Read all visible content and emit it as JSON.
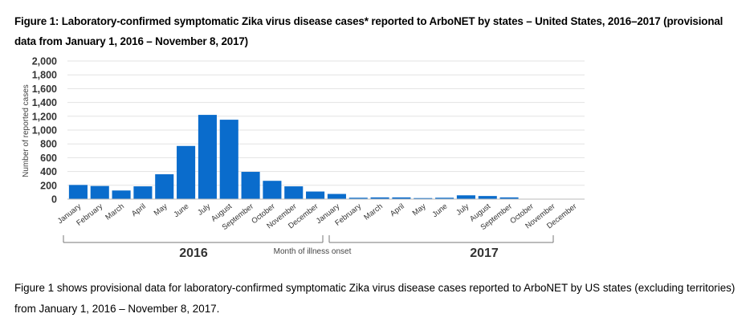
{
  "figure": {
    "title": "Figure 1:  Laboratory-confirmed symptomatic Zika virus disease cases* reported to ArboNET by states – United States, 2016–2017 (provisional data from January 1, 2016 – November 8, 2017)",
    "caption": "Figure 1 shows provisional data for laboratory-confirmed symptomatic Zika virus disease cases reported to ArboNET by US states (excluding territories) from January 1, 2016 – November 8, 2017."
  },
  "chart_data": {
    "type": "bar",
    "ylabel": "Number of reported cases",
    "xlabel": "Month of illness onset",
    "ylim": [
      0,
      2000
    ],
    "yticks": [
      "2,000",
      "1,800",
      "1,600",
      "1,400",
      "1,200",
      "1,000",
      "800",
      "600",
      "400",
      "200",
      "0"
    ],
    "ytick_values": [
      2000,
      1800,
      1600,
      1400,
      1200,
      1000,
      800,
      600,
      400,
      200,
      0
    ],
    "grid": true,
    "bar_color": "#0a6ccc",
    "year_groups": [
      {
        "label": "2016",
        "months": 12
      },
      {
        "label": "2017",
        "months": 12
      }
    ],
    "categories": [
      "January",
      "February",
      "March",
      "April",
      "May",
      "June",
      "July",
      "August",
      "September",
      "October",
      "November",
      "December",
      "January",
      "February",
      "March",
      "April",
      "May",
      "June",
      "July",
      "August",
      "September",
      "October",
      "November",
      "December"
    ],
    "values": [
      205,
      190,
      125,
      185,
      360,
      770,
      1220,
      1150,
      395,
      265,
      185,
      110,
      75,
      20,
      25,
      25,
      15,
      20,
      55,
      45,
      25,
      0,
      0,
      0
    ]
  }
}
